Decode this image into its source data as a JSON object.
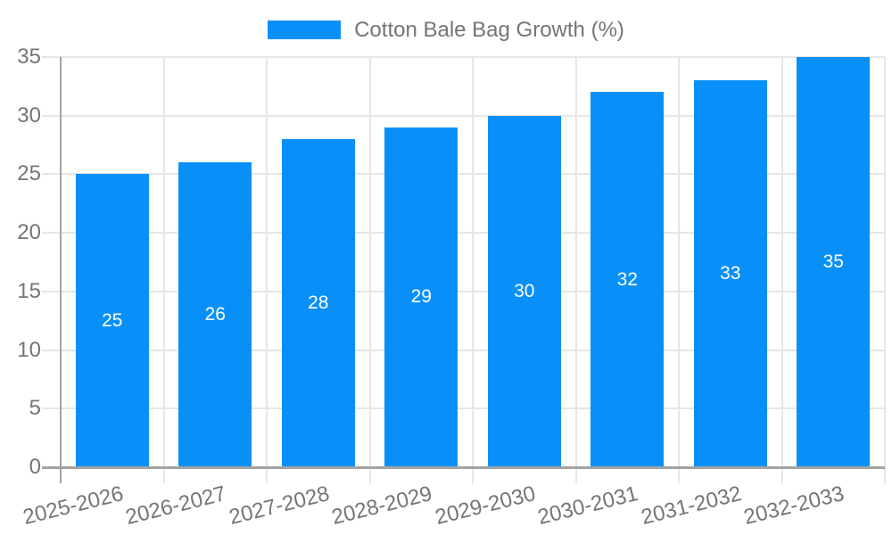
{
  "chart_data": {
    "type": "bar",
    "legend": {
      "label": "Cotton Bale Bag Growth (%)",
      "position": "top-center"
    },
    "categories": [
      "2025-2026",
      "2026-2027",
      "2027-2028",
      "2028-2029",
      "2029-2030",
      "2030-2031",
      "2031-2032",
      "2032-2033"
    ],
    "values": [
      25,
      26,
      28,
      29,
      30,
      32,
      33,
      35
    ],
    "bar_value_labels": [
      "25",
      "26",
      "28",
      "29",
      "30",
      "32",
      "33",
      "35"
    ],
    "xlabel": "",
    "ylabel": "",
    "ylim": [
      0,
      35
    ],
    "yticks": [
      0,
      5,
      10,
      15,
      20,
      25,
      30,
      35
    ],
    "grid": true,
    "x_labels_rotated": true,
    "colors": {
      "bar": "#0890f8",
      "bar_label": "#ffffff",
      "axis_text": "#757575",
      "legend_text": "#757575",
      "gridline": "#e6e6e6",
      "axis_line": "#a3a3a3"
    }
  }
}
